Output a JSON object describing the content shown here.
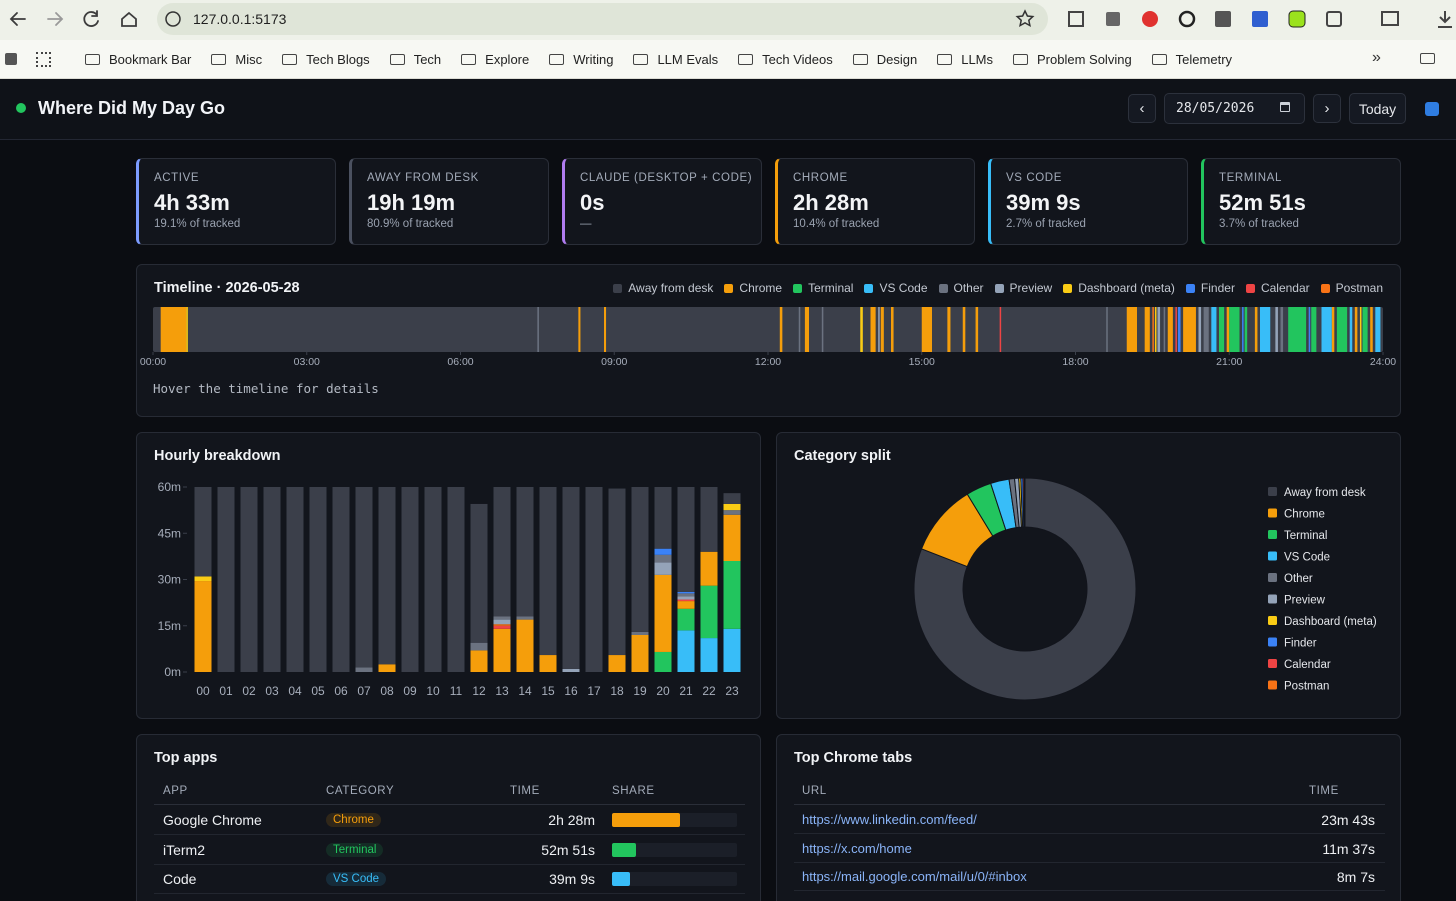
{
  "browser": {
    "url": "127.0.0.1:5173",
    "bookmarks": [
      "Bookmark Bar",
      "Misc",
      "Tech Blogs",
      "Tech",
      "Explore",
      "Writing",
      "LLM Evals",
      "Tech Videos",
      "Design",
      "LLMs",
      "Problem Solving",
      "Telemetry"
    ],
    "more": "»"
  },
  "header": {
    "title": "Where Did My Day Go",
    "prev": "‹",
    "date": "28/05/2026",
    "next": "›",
    "today": "Today"
  },
  "stats": [
    {
      "label": "ACTIVE",
      "value": "4h 33m",
      "sub": "19.1% of tracked",
      "color": "#7c9cff"
    },
    {
      "label": "AWAY FROM DESK",
      "value": "19h 19m",
      "sub": "80.9% of tracked",
      "color": "#4b5160"
    },
    {
      "label": "CLAUDE (DESKTOP + CODE)",
      "value": "0s",
      "sub": "—",
      "color": "#b07cf0"
    },
    {
      "label": "CHROME",
      "value": "2h 28m",
      "sub": "10.4% of tracked",
      "color": "#f59e0b"
    },
    {
      "label": "VS CODE",
      "value": "39m 9s",
      "sub": "2.7% of tracked",
      "color": "#38bdf8"
    },
    {
      "label": "TERMINAL",
      "value": "52m 51s",
      "sub": "3.7% of tracked",
      "color": "#22c55e"
    }
  ],
  "timeline": {
    "title": "Timeline · 2026-05-28",
    "xlim": [
      0,
      24
    ],
    "xticks": [
      {
        "value": 0,
        "label": "00:00"
      },
      {
        "value": 3,
        "label": "03:00"
      },
      {
        "value": 6,
        "label": "06:00"
      },
      {
        "value": 9,
        "label": "09:00"
      },
      {
        "value": 12,
        "label": "12:00"
      },
      {
        "value": 15,
        "label": "15:00"
      },
      {
        "value": 18,
        "label": "18:00"
      },
      {
        "value": 21,
        "label": "21:00"
      },
      {
        "value": 24,
        "label": "24:00"
      }
    ],
    "categories": [
      {
        "name": "Away from desk",
        "color": "#3b3f4a"
      },
      {
        "name": "Chrome",
        "color": "#f59e0b",
        "segments": [
          [
            0.15,
            0.65
          ],
          [
            8.3,
            8.34
          ],
          [
            8.8,
            8.84
          ],
          [
            12.23,
            12.28
          ],
          [
            12.72,
            12.8
          ],
          [
            14.0,
            14.1
          ],
          [
            14.2,
            14.26
          ],
          [
            14.4,
            14.45
          ],
          [
            15.0,
            15.2
          ],
          [
            15.5,
            15.56
          ],
          [
            15.8,
            15.85
          ],
          [
            16.05,
            16.1
          ],
          [
            19.0,
            19.2
          ],
          [
            19.35,
            19.45
          ],
          [
            19.8,
            19.9
          ],
          [
            20.1,
            20.35
          ],
          [
            20.95,
            21.0
          ],
          [
            21.5,
            21.55
          ],
          [
            23.0,
            23.05
          ],
          [
            23.45,
            23.5
          ],
          [
            23.75,
            23.8
          ]
        ]
      },
      {
        "name": "Terminal",
        "color": "#22c55e",
        "segments": [
          [
            20.8,
            20.9
          ],
          [
            21.0,
            21.2
          ],
          [
            21.3,
            21.35
          ],
          [
            22.15,
            22.5
          ],
          [
            22.6,
            22.7
          ],
          [
            23.1,
            23.3
          ],
          [
            23.6,
            23.7
          ]
        ]
      },
      {
        "name": "VS Code",
        "color": "#38bdf8",
        "segments": [
          [
            20.65,
            20.75
          ],
          [
            21.6,
            21.8
          ],
          [
            22.8,
            23.0
          ],
          [
            23.35,
            23.4
          ],
          [
            23.85,
            23.95
          ]
        ]
      },
      {
        "name": "Other",
        "color": "#6b7280",
        "segments": [
          [
            7.5,
            7.53
          ],
          [
            12.6,
            12.63
          ],
          [
            13.05,
            13.08
          ],
          [
            18.6,
            18.62
          ],
          [
            19.72,
            19.75
          ],
          [
            20.5,
            20.6
          ],
          [
            22.0,
            22.05
          ]
        ]
      },
      {
        "name": "Preview",
        "color": "#94a3b8",
        "segments": [
          [
            14.15,
            14.18
          ],
          [
            19.6,
            19.65
          ],
          [
            20.4,
            20.45
          ],
          [
            21.9,
            21.95
          ]
        ]
      },
      {
        "name": "Dashboard (meta)",
        "color": "#facc15",
        "segments": [
          [
            0.65,
            0.68
          ],
          [
            13.8,
            13.85
          ],
          [
            19.55,
            19.58
          ],
          [
            23.55,
            23.58
          ]
        ]
      },
      {
        "name": "Finder",
        "color": "#3b82f6",
        "segments": [
          [
            20.0,
            20.05
          ],
          [
            21.25,
            21.28
          ],
          [
            22.55,
            22.58
          ]
        ]
      },
      {
        "name": "Calendar",
        "color": "#ef4444",
        "segments": [
          [
            16.52,
            16.54
          ],
          [
            19.95,
            19.97
          ]
        ]
      },
      {
        "name": "Postman",
        "color": "#f97316",
        "segments": [
          [
            19.5,
            19.52
          ]
        ]
      }
    ],
    "hint": "Hover the timeline for details"
  },
  "chart_data": [
    {
      "type": "bar",
      "stacked": true,
      "title": "Hourly breakdown",
      "categories": [
        "00",
        "01",
        "02",
        "03",
        "04",
        "05",
        "06",
        "07",
        "08",
        "09",
        "10",
        "11",
        "12",
        "13",
        "14",
        "15",
        "16",
        "17",
        "18",
        "19",
        "20",
        "21",
        "22",
        "23"
      ],
      "ylim": [
        0,
        60
      ],
      "yticks": [
        {
          "value": 0,
          "label": "0m"
        },
        {
          "value": 15,
          "label": "15m"
        },
        {
          "value": 30,
          "label": "30m"
        },
        {
          "value": 45,
          "label": "45m"
        },
        {
          "value": 60,
          "label": "60m"
        }
      ],
      "series": [
        {
          "color": "#38bdf8",
          "values": [
            0,
            0,
            0,
            0,
            0,
            0,
            0,
            0,
            0,
            0,
            0,
            0,
            0,
            0,
            0,
            0,
            0,
            0,
            0,
            0,
            0,
            13.5,
            11,
            14
          ]
        },
        {
          "color": "#22c55e",
          "values": [
            0,
            0,
            0,
            0,
            0,
            0,
            0,
            0,
            0,
            0,
            0,
            0,
            0,
            0,
            0,
            0,
            0,
            0,
            0,
            0,
            6.5,
            7,
            17,
            22
          ]
        },
        {
          "color": "#f59e0b",
          "values": [
            29.5,
            0,
            0,
            0,
            0,
            0,
            0,
            0,
            2.5,
            0,
            0,
            0,
            7,
            14,
            17,
            5.5,
            0,
            0,
            5.5,
            12,
            25,
            2.5,
            11,
            15
          ]
        },
        {
          "color": "#ef4444",
          "values": [
            0,
            0,
            0,
            0,
            0,
            0,
            0,
            0,
            0,
            0,
            0,
            0,
            0,
            1,
            0,
            0,
            0,
            0,
            0,
            0,
            0,
            0.5,
            0,
            0
          ]
        },
        {
          "color": "#f97316",
          "values": [
            0,
            0,
            0,
            0,
            0,
            0,
            0,
            0,
            0,
            0,
            0,
            0,
            0,
            0.5,
            0,
            0,
            0,
            0,
            0,
            0,
            0,
            0,
            0,
            0
          ]
        },
        {
          "color": "#94a3b8",
          "values": [
            0,
            0,
            0,
            0,
            0,
            0,
            0,
            0,
            0,
            0,
            0,
            0,
            0,
            1.5,
            0,
            0,
            1,
            0,
            0,
            0,
            4,
            1,
            0,
            0
          ]
        },
        {
          "color": "#6b7280",
          "values": [
            0,
            0,
            0,
            0,
            0,
            0,
            0,
            1.5,
            0,
            0,
            0,
            0,
            2.5,
            1,
            1,
            0,
            0,
            0,
            0,
            1,
            2.5,
            1,
            0,
            1.5
          ]
        },
        {
          "color": "#3b82f6",
          "values": [
            0,
            0,
            0,
            0,
            0,
            0,
            0,
            0,
            0,
            0,
            0,
            0,
            0,
            0,
            0,
            0,
            0,
            0,
            0,
            0,
            2,
            0.5,
            0,
            0
          ]
        },
        {
          "color": "#facc15",
          "values": [
            1.5,
            0,
            0,
            0,
            0,
            0,
            0,
            0,
            0,
            0,
            0,
            0,
            0,
            0,
            0,
            0,
            0,
            0,
            0,
            0,
            0,
            0,
            0,
            2
          ]
        },
        {
          "color": "#3b3f4a",
          "values": [
            29,
            60,
            60,
            60,
            60,
            60,
            60,
            58.5,
            57.5,
            60,
            60,
            60,
            45,
            42,
            42,
            54.5,
            59,
            60,
            54,
            47,
            20,
            34,
            21,
            3.5
          ]
        }
      ]
    },
    {
      "type": "pie",
      "donut": true,
      "title": "Category split",
      "categories": [
        "Away from desk",
        "Chrome",
        "Terminal",
        "VS Code",
        "Other",
        "Preview",
        "Dashboard (meta)",
        "Finder",
        "Calendar",
        "Postman"
      ],
      "colors": [
        "#3b3f4a",
        "#f59e0b",
        "#22c55e",
        "#38bdf8",
        "#6b7280",
        "#94a3b8",
        "#facc15",
        "#3b82f6",
        "#ef4444",
        "#f97316"
      ],
      "values": [
        80.9,
        10.4,
        3.7,
        2.7,
        0.8,
        0.6,
        0.3,
        0.3,
        0.2,
        0.1
      ]
    }
  ],
  "top_apps": {
    "title": "Top apps",
    "columns": [
      "APP",
      "CATEGORY",
      "TIME",
      "SHARE"
    ],
    "rows": [
      {
        "app": "Google Chrome",
        "category": "Chrome",
        "time": "2h 28m",
        "share": 54,
        "color": "#f59e0b"
      },
      {
        "app": "iTerm2",
        "category": "Terminal",
        "time": "52m 51s",
        "share": 19,
        "color": "#22c55e"
      },
      {
        "app": "Code",
        "category": "VS Code",
        "time": "39m 9s",
        "share": 14,
        "color": "#38bdf8"
      }
    ]
  },
  "top_tabs": {
    "title": "Top Chrome tabs",
    "columns": [
      "URL",
      "TIME"
    ],
    "rows": [
      {
        "url": "https://www.linkedin.com/feed/",
        "time": "23m 43s"
      },
      {
        "url": "https://x.com/home",
        "time": "11m 37s"
      },
      {
        "url": "https://mail.google.com/mail/u/0/#inbox",
        "time": "8m 7s"
      }
    ]
  }
}
